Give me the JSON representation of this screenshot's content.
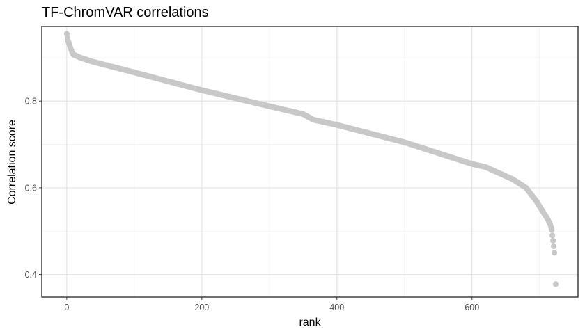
{
  "chart_data": {
    "type": "scatter",
    "title": "TF-ChromVAR correlations",
    "xlabel": "rank",
    "ylabel": "Correlation score",
    "xlim": [
      -37,
      757
    ],
    "ylim": [
      0.348,
      0.972
    ],
    "x_ticks": [
      0,
      200,
      400,
      600
    ],
    "x_tick_labels": [
      "0",
      "200",
      "400",
      "600"
    ],
    "y_ticks": [
      0.4,
      0.6,
      0.8
    ],
    "y_tick_labels": [
      "0.4",
      "0.6",
      "0.8"
    ],
    "x_minor_ticks": [
      100,
      300,
      500,
      700
    ],
    "y_minor_ticks": [
      0.5,
      0.7,
      0.9
    ],
    "grid": true,
    "point_color": "#c8c8c8",
    "n_points": 722,
    "trend_keypoints": [
      [
        0,
        0.955
      ],
      [
        1,
        0.946
      ],
      [
        2,
        0.938
      ],
      [
        4,
        0.93
      ],
      [
        6,
        0.92
      ],
      [
        8,
        0.912
      ],
      [
        10,
        0.907
      ],
      [
        20,
        0.9
      ],
      [
        40,
        0.89
      ],
      [
        100,
        0.866
      ],
      [
        200,
        0.825
      ],
      [
        300,
        0.788
      ],
      [
        350,
        0.77
      ],
      [
        365,
        0.757
      ],
      [
        400,
        0.745
      ],
      [
        500,
        0.705
      ],
      [
        600,
        0.655
      ],
      [
        620,
        0.648
      ],
      [
        660,
        0.62
      ],
      [
        680,
        0.6
      ],
      [
        695,
        0.57
      ],
      [
        705,
        0.545
      ],
      [
        712,
        0.528
      ],
      [
        716,
        0.515
      ],
      [
        718,
        0.503
      ],
      [
        719,
        0.49
      ],
      [
        720,
        0.478
      ],
      [
        721,
        0.465
      ],
      [
        722,
        0.45
      ],
      [
        723,
        0.425
      ],
      [
        724,
        0.378
      ]
    ]
  }
}
